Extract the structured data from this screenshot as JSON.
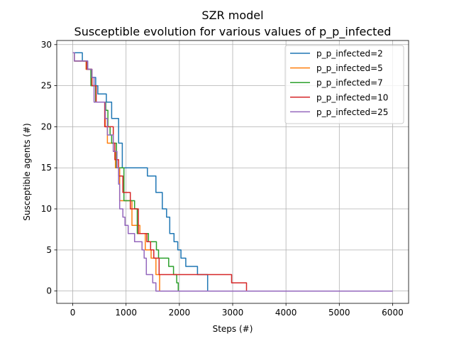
{
  "chart_data": {
    "type": "line",
    "title": "SZR model",
    "subtitle": "Susceptible evolution for various values of p_p_infected",
    "xlabel": "Steps (#)",
    "ylabel": "Susceptible agents (#)",
    "xlim": [
      -300,
      6300
    ],
    "ylim": [
      -1.5,
      30.5
    ],
    "xticks": [
      0,
      1000,
      2000,
      3000,
      4000,
      5000,
      6000
    ],
    "yticks": [
      0,
      5,
      10,
      15,
      20,
      25,
      30
    ],
    "grid": true,
    "legend_position": "top-right",
    "series": [
      {
        "name": "p_p_infected=2",
        "color": "#1f77b4",
        "points": [
          [
            0,
            29
          ],
          [
            180,
            29
          ],
          [
            180,
            28
          ],
          [
            280,
            28
          ],
          [
            280,
            27
          ],
          [
            350,
            27
          ],
          [
            350,
            26
          ],
          [
            430,
            26
          ],
          [
            430,
            25
          ],
          [
            470,
            25
          ],
          [
            470,
            24
          ],
          [
            630,
            24
          ],
          [
            630,
            23
          ],
          [
            730,
            23
          ],
          [
            730,
            21
          ],
          [
            860,
            21
          ],
          [
            860,
            18
          ],
          [
            930,
            18
          ],
          [
            930,
            15
          ],
          [
            1400,
            15
          ],
          [
            1400,
            14
          ],
          [
            1560,
            14
          ],
          [
            1560,
            12
          ],
          [
            1680,
            12
          ],
          [
            1680,
            10
          ],
          [
            1760,
            10
          ],
          [
            1760,
            9
          ],
          [
            1820,
            9
          ],
          [
            1820,
            7
          ],
          [
            1900,
            7
          ],
          [
            1900,
            6
          ],
          [
            1970,
            6
          ],
          [
            1970,
            5
          ],
          [
            2030,
            5
          ],
          [
            2030,
            4
          ],
          [
            2120,
            4
          ],
          [
            2120,
            3
          ],
          [
            2340,
            3
          ],
          [
            2340,
            2
          ],
          [
            2530,
            2
          ],
          [
            2530,
            0
          ],
          [
            6000,
            0
          ]
        ]
      },
      {
        "name": "p_p_infected=5",
        "color": "#ff7f0e",
        "points": [
          [
            0,
            29
          ],
          [
            30,
            29
          ],
          [
            30,
            28
          ],
          [
            250,
            28
          ],
          [
            250,
            27
          ],
          [
            360,
            27
          ],
          [
            360,
            25
          ],
          [
            430,
            25
          ],
          [
            430,
            23
          ],
          [
            610,
            23
          ],
          [
            610,
            20
          ],
          [
            650,
            20
          ],
          [
            650,
            18
          ],
          [
            760,
            18
          ],
          [
            760,
            17
          ],
          [
            800,
            17
          ],
          [
            800,
            15
          ],
          [
            880,
            15
          ],
          [
            880,
            11
          ],
          [
            1110,
            11
          ],
          [
            1110,
            8
          ],
          [
            1260,
            8
          ],
          [
            1260,
            7
          ],
          [
            1360,
            7
          ],
          [
            1360,
            5
          ],
          [
            1470,
            5
          ],
          [
            1470,
            4
          ],
          [
            1560,
            4
          ],
          [
            1560,
            2
          ],
          [
            1630,
            2
          ],
          [
            1630,
            0
          ],
          [
            6000,
            0
          ]
        ]
      },
      {
        "name": "p_p_infected=7",
        "color": "#2ca02c",
        "points": [
          [
            0,
            29
          ],
          [
            30,
            29
          ],
          [
            30,
            28
          ],
          [
            260,
            28
          ],
          [
            260,
            27
          ],
          [
            340,
            27
          ],
          [
            340,
            25
          ],
          [
            430,
            25
          ],
          [
            430,
            23
          ],
          [
            620,
            23
          ],
          [
            620,
            22
          ],
          [
            660,
            22
          ],
          [
            660,
            20
          ],
          [
            700,
            20
          ],
          [
            700,
            19
          ],
          [
            730,
            19
          ],
          [
            730,
            18
          ],
          [
            820,
            18
          ],
          [
            820,
            15
          ],
          [
            960,
            15
          ],
          [
            960,
            11
          ],
          [
            1160,
            11
          ],
          [
            1160,
            10
          ],
          [
            1210,
            10
          ],
          [
            1210,
            7
          ],
          [
            1420,
            7
          ],
          [
            1420,
            6
          ],
          [
            1570,
            6
          ],
          [
            1570,
            5
          ],
          [
            1610,
            5
          ],
          [
            1610,
            4
          ],
          [
            1800,
            4
          ],
          [
            1800,
            3
          ],
          [
            1890,
            3
          ],
          [
            1890,
            2
          ],
          [
            1950,
            2
          ],
          [
            1950,
            1
          ],
          [
            1980,
            1
          ],
          [
            1980,
            0
          ],
          [
            6000,
            0
          ]
        ]
      },
      {
        "name": "p_p_infected=10",
        "color": "#d62728",
        "points": [
          [
            0,
            29
          ],
          [
            30,
            29
          ],
          [
            30,
            28
          ],
          [
            260,
            28
          ],
          [
            260,
            27
          ],
          [
            360,
            27
          ],
          [
            360,
            25
          ],
          [
            440,
            25
          ],
          [
            440,
            23
          ],
          [
            600,
            23
          ],
          [
            600,
            20
          ],
          [
            760,
            20
          ],
          [
            760,
            18
          ],
          [
            790,
            18
          ],
          [
            790,
            16
          ],
          [
            860,
            16
          ],
          [
            860,
            14
          ],
          [
            940,
            14
          ],
          [
            940,
            12
          ],
          [
            1080,
            12
          ],
          [
            1080,
            10
          ],
          [
            1230,
            10
          ],
          [
            1230,
            7
          ],
          [
            1390,
            7
          ],
          [
            1390,
            6
          ],
          [
            1460,
            6
          ],
          [
            1460,
            5
          ],
          [
            1520,
            5
          ],
          [
            1520,
            4
          ],
          [
            1620,
            4
          ],
          [
            1620,
            2
          ],
          [
            2980,
            2
          ],
          [
            2980,
            1
          ],
          [
            3260,
            1
          ],
          [
            3260,
            0
          ],
          [
            6000,
            0
          ]
        ]
      },
      {
        "name": "p_p_infected=25",
        "color": "#9467bd",
        "points": [
          [
            0,
            29
          ],
          [
            30,
            29
          ],
          [
            30,
            28
          ],
          [
            280,
            28
          ],
          [
            280,
            27
          ],
          [
            360,
            27
          ],
          [
            360,
            26
          ],
          [
            400,
            26
          ],
          [
            400,
            23
          ],
          [
            610,
            23
          ],
          [
            610,
            21
          ],
          [
            650,
            21
          ],
          [
            650,
            19
          ],
          [
            760,
            19
          ],
          [
            760,
            17
          ],
          [
            830,
            17
          ],
          [
            830,
            15
          ],
          [
            860,
            15
          ],
          [
            860,
            13
          ],
          [
            880,
            13
          ],
          [
            880,
            10
          ],
          [
            940,
            10
          ],
          [
            940,
            9
          ],
          [
            980,
            9
          ],
          [
            980,
            8
          ],
          [
            1040,
            8
          ],
          [
            1040,
            7
          ],
          [
            1160,
            7
          ],
          [
            1160,
            6
          ],
          [
            1300,
            6
          ],
          [
            1300,
            5
          ],
          [
            1340,
            5
          ],
          [
            1340,
            4
          ],
          [
            1380,
            4
          ],
          [
            1380,
            2
          ],
          [
            1500,
            2
          ],
          [
            1500,
            1
          ],
          [
            1560,
            1
          ],
          [
            1560,
            0
          ],
          [
            6000,
            0
          ]
        ]
      }
    ]
  }
}
